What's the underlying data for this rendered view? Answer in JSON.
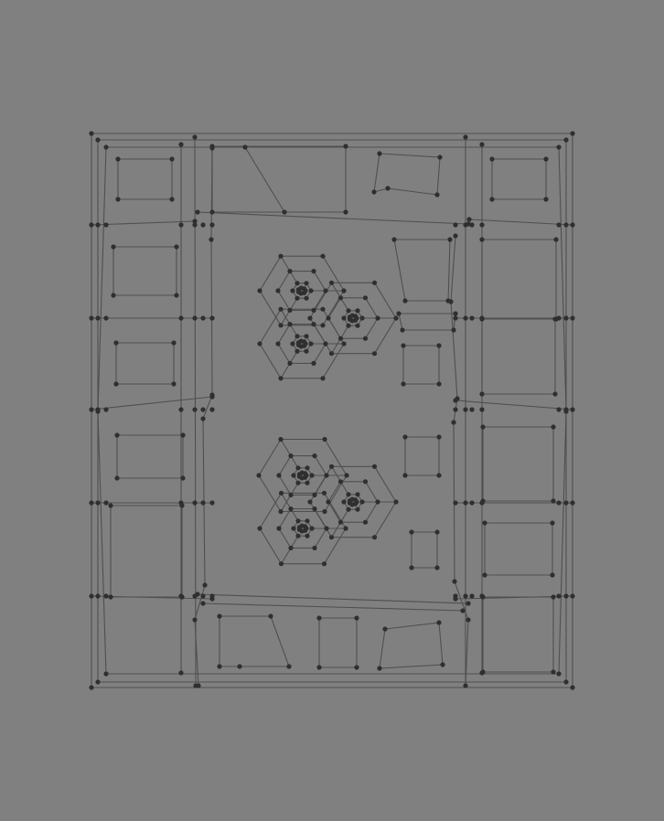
{
  "diagram": {
    "type": "wireframe-mesh",
    "background_color": "#808080",
    "edge_color": "#4f4f4f",
    "node_color": "#2f2f2f",
    "labels_shown": false
  }
}
